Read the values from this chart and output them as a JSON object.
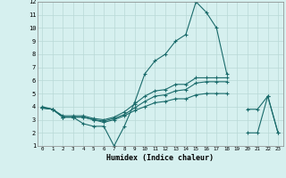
{
  "xlabel": "Humidex (Indice chaleur)",
  "xlim": [
    -0.5,
    23.5
  ],
  "ylim": [
    1,
    12
  ],
  "xticks": [
    0,
    1,
    2,
    3,
    4,
    5,
    6,
    7,
    8,
    9,
    10,
    11,
    12,
    13,
    14,
    15,
    16,
    17,
    18,
    19,
    20,
    21,
    22,
    23
  ],
  "yticks": [
    1,
    2,
    3,
    4,
    5,
    6,
    7,
    8,
    9,
    10,
    11,
    12
  ],
  "bg_color": "#d6f0ef",
  "grid_color": "#b8d8d6",
  "line_color": "#1a6b6b",
  "series": [
    {
      "x": [
        0,
        1,
        2,
        3,
        4,
        5,
        6,
        7,
        8,
        9,
        10,
        11,
        12,
        13,
        14,
        15,
        16,
        17,
        18
      ],
      "y": [
        4,
        3.8,
        3.2,
        3.2,
        2.7,
        2.5,
        2.5,
        1.0,
        2.5,
        4.3,
        6.5,
        7.5,
        8.0,
        9.0,
        9.5,
        12.0,
        11.2,
        10.0,
        6.5
      ]
    },
    {
      "x": [
        0,
        1,
        2,
        3,
        4,
        5,
        6,
        7,
        8,
        9,
        10,
        11,
        12,
        13,
        14,
        15,
        16,
        17,
        18
      ],
      "y": [
        3.9,
        3.8,
        3.3,
        3.3,
        3.3,
        3.1,
        3.0,
        3.2,
        3.6,
        4.2,
        4.8,
        5.2,
        5.3,
        5.7,
        5.7,
        6.2,
        6.2,
        6.2,
        6.2
      ]
    },
    {
      "x": [
        0,
        1,
        2,
        3,
        4,
        5,
        6,
        7,
        8,
        9,
        10,
        11,
        12,
        13,
        14,
        15,
        16,
        17,
        18
      ],
      "y": [
        3.9,
        3.8,
        3.2,
        3.2,
        3.2,
        3.0,
        2.9,
        3.1,
        3.4,
        3.9,
        4.4,
        4.8,
        4.9,
        5.2,
        5.3,
        5.8,
        5.9,
        5.9,
        5.9
      ]
    },
    {
      "x": [
        0,
        1,
        2,
        3,
        4,
        5,
        6,
        7,
        8,
        9,
        10,
        11,
        12,
        13,
        14,
        15,
        16,
        17,
        18
      ],
      "y": [
        3.9,
        3.8,
        3.2,
        3.2,
        3.2,
        3.0,
        2.8,
        3.0,
        3.3,
        3.7,
        4.0,
        4.3,
        4.4,
        4.6,
        4.6,
        4.9,
        5.0,
        5.0,
        5.0
      ]
    },
    {
      "x": [
        20,
        21,
        22,
        23
      ],
      "y": [
        3.8,
        3.8,
        4.8,
        2.0
      ]
    },
    {
      "x": [
        20,
        21,
        22,
        23
      ],
      "y": [
        2.0,
        2.0,
        4.8,
        2.0
      ]
    }
  ]
}
